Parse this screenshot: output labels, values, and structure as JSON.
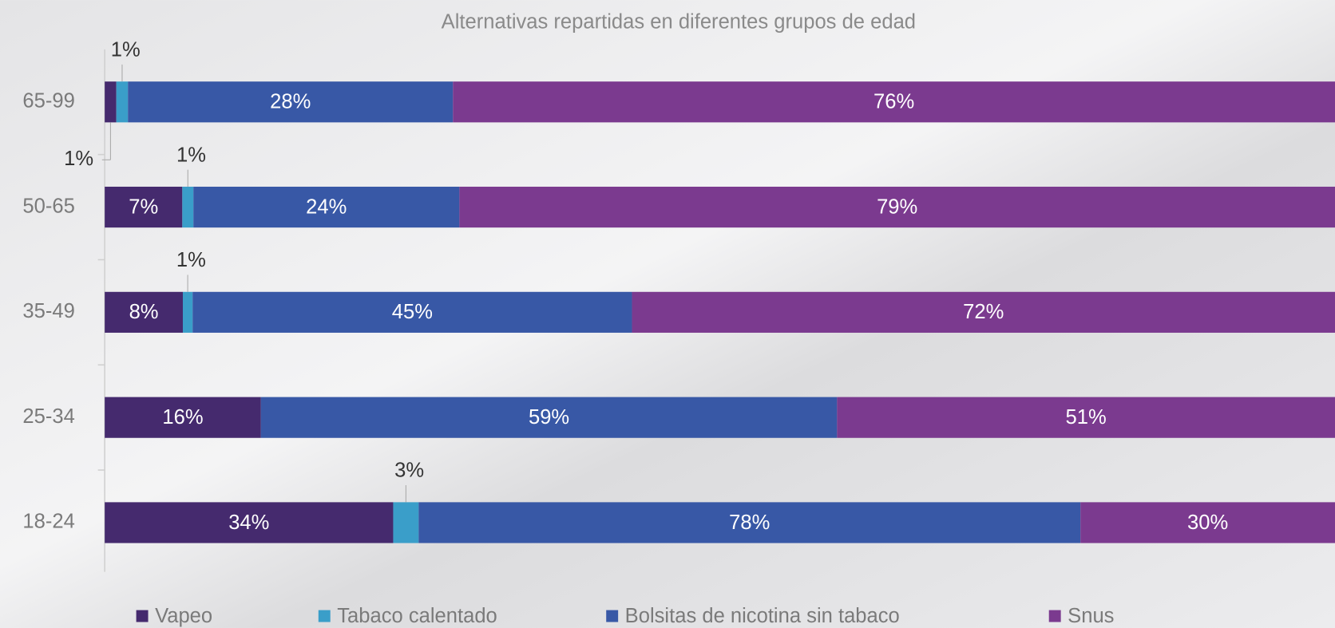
{
  "chart_data": {
    "type": "bar",
    "orientation": "horizontal",
    "stacking": "percent",
    "title": "Alternativas repartidas en diferentes grupos de edad",
    "categories": [
      "65-99",
      "50-65",
      "35-49",
      "25-34",
      "18-24"
    ],
    "series": [
      {
        "name": "Vapeo",
        "color": "#452a6e",
        "values": [
          1,
          7,
          8,
          16,
          34
        ],
        "value_labels": [
          "1%",
          "7%",
          "8%",
          "16%",
          "34%"
        ]
      },
      {
        "name": "Tabaco calentado",
        "color": "#3a9ec9",
        "values": [
          1,
          1,
          1,
          null,
          3
        ],
        "value_labels": [
          "1%",
          "1%",
          "1%",
          null,
          "3%"
        ]
      },
      {
        "name": "Bolsitas de nicotina sin tabaco",
        "color": "#3858a6",
        "values": [
          28,
          24,
          45,
          59,
          78
        ],
        "value_labels": [
          "28%",
          "24%",
          "45%",
          "59%",
          "78%"
        ]
      },
      {
        "name": "Snus",
        "color": "#7b3a8f",
        "values": [
          76,
          79,
          72,
          51,
          30
        ],
        "value_labels": [
          "76%",
          "79%",
          "72%",
          "51%",
          "30%"
        ]
      }
    ],
    "legend": "bottom"
  }
}
